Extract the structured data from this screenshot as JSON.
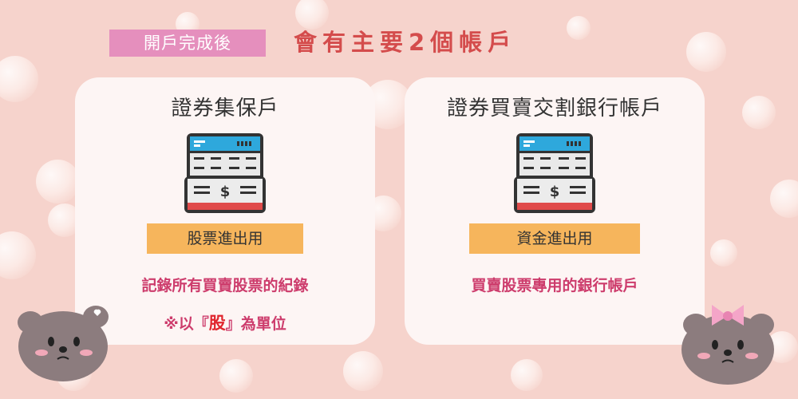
{
  "header": {
    "tag": "開戶完成後",
    "headline": "會有主要2個帳戶"
  },
  "cards": [
    {
      "title": "證券集保戶",
      "icon": "bank-statement-icon",
      "label": "股票進出用",
      "desc_line1": "記錄所有買賣股票的紀錄",
      "note_prefix": "※以『",
      "note_highlight": "股",
      "note_suffix": "』為單位"
    },
    {
      "title": "證券買賣交割銀行帳戶",
      "icon": "bank-statement-icon",
      "label": "資金進出用",
      "desc_line1": "買賣股票專用的銀行帳戶"
    }
  ],
  "colors": {
    "background": "#f6d3cc",
    "tag": "#e58fbd",
    "headline": "#d44c4c",
    "label_bar": "#f6b55c",
    "desc": "#cd3c6c",
    "icon_blue": "#2ea8dc",
    "icon_red": "#e04b4b"
  }
}
